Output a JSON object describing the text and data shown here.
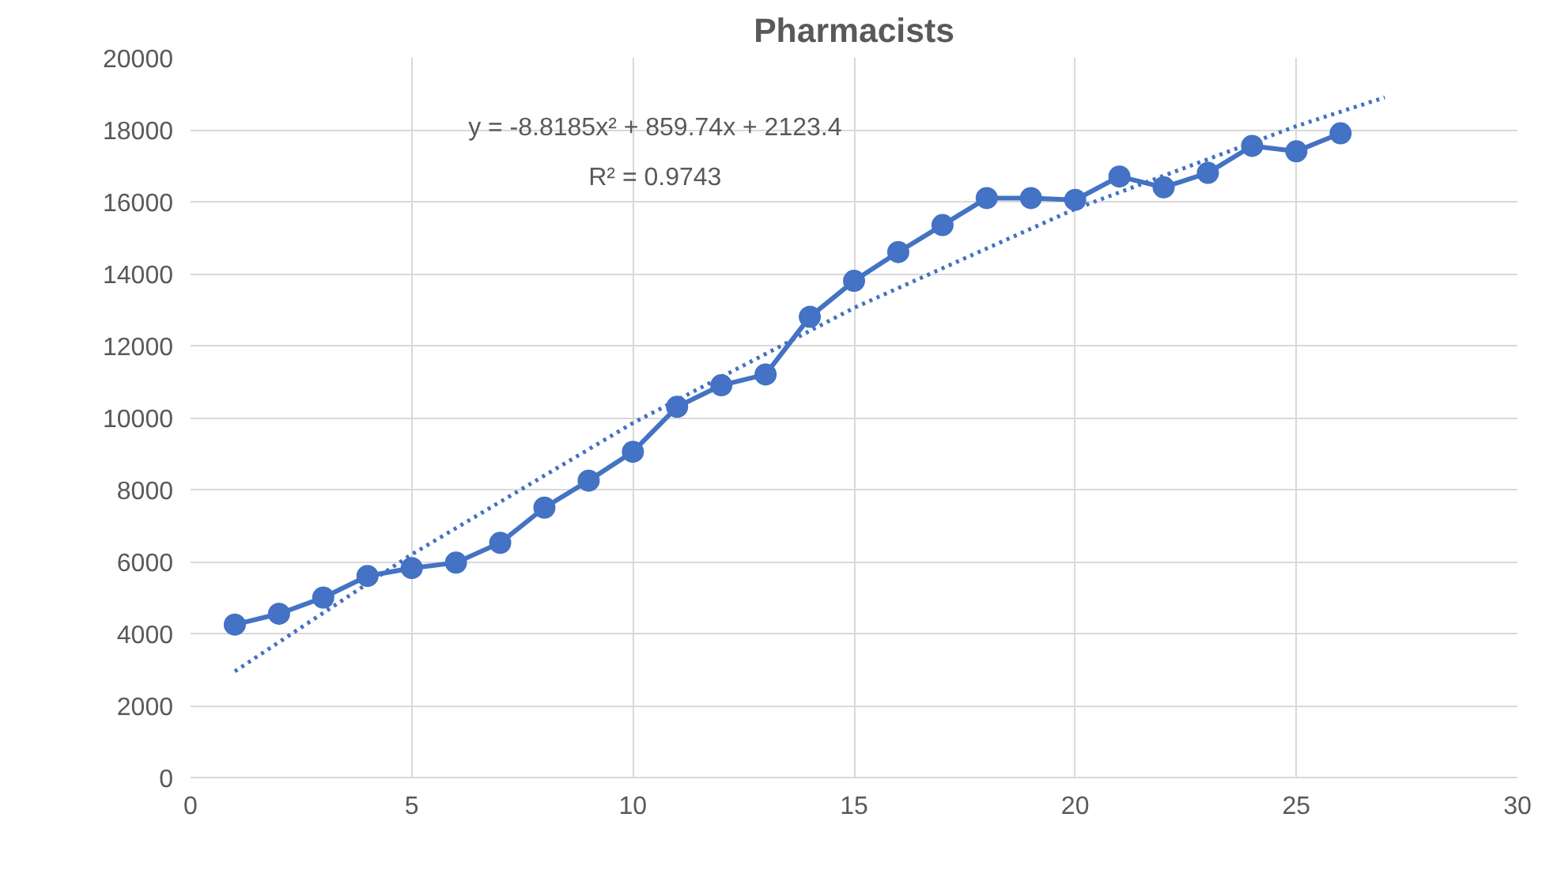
{
  "chart_data": {
    "type": "line",
    "title": "Pharmacists",
    "x": [
      1,
      2,
      3,
      4,
      5,
      6,
      7,
      8,
      9,
      10,
      11,
      12,
      13,
      14,
      15,
      16,
      17,
      18,
      19,
      20,
      21,
      22,
      23,
      24,
      25,
      26
    ],
    "series": [
      {
        "color": "#4472c4",
        "marker": "circle",
        "line_style": "solid",
        "values": [
          4250,
          4550,
          5000,
          5600,
          5820,
          5970,
          6520,
          7500,
          8250,
          9050,
          10300,
          10900,
          11200,
          12800,
          13800,
          14600,
          15350,
          16100,
          16100,
          16050,
          16700,
          16400,
          16800,
          17550,
          17400,
          17900
        ]
      },
      {
        "color": "#4472c4",
        "marker": "none",
        "line_style": "dotted",
        "x": [
          1,
          5,
          10,
          15,
          20,
          25,
          27
        ],
        "values": [
          2950,
          6200,
          9850,
          13050,
          15800,
          18100,
          18900
        ]
      }
    ],
    "annotations": [
      "y = -8.8185x² + 859.74x + 2123.4",
      "R² = 0.9743"
    ],
    "xlim": [
      0,
      30
    ],
    "xticks": [
      0,
      5,
      10,
      15,
      20,
      25,
      30
    ],
    "ylim": [
      0,
      20000
    ],
    "yticks": [
      0,
      2000,
      4000,
      6000,
      8000,
      10000,
      12000,
      14000,
      16000,
      18000,
      20000
    ],
    "grid": true
  }
}
